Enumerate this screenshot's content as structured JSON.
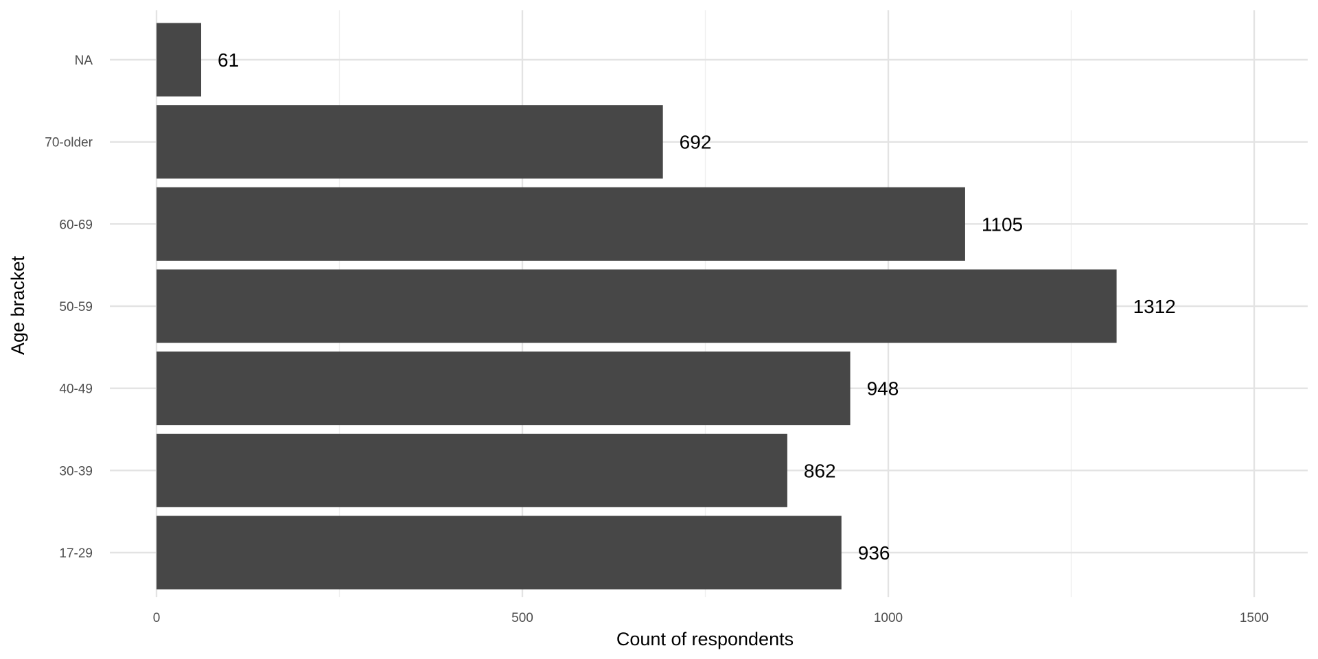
{
  "chart_data": {
    "type": "bar",
    "orientation": "horizontal",
    "categories": [
      "17-29",
      "30-39",
      "40-49",
      "50-59",
      "60-69",
      "70-older",
      "NA"
    ],
    "values": [
      936,
      862,
      948,
      1312,
      1105,
      692,
      61
    ],
    "data_labels": [
      "936",
      "862",
      "948",
      "1312",
      "1105",
      "692",
      "61"
    ],
    "xlabel": "Count of respondents",
    "ylabel": "Age bracket",
    "xlim": [
      0,
      1550
    ],
    "x_ticks": [
      0,
      500,
      1000,
      1500
    ],
    "x_tick_labels": [
      "0",
      "500",
      "1000",
      "1500"
    ],
    "x_minor_ticks": [
      250,
      750,
      1250
    ],
    "grid": true,
    "bar_color": "#474747",
    "legend": "none"
  }
}
